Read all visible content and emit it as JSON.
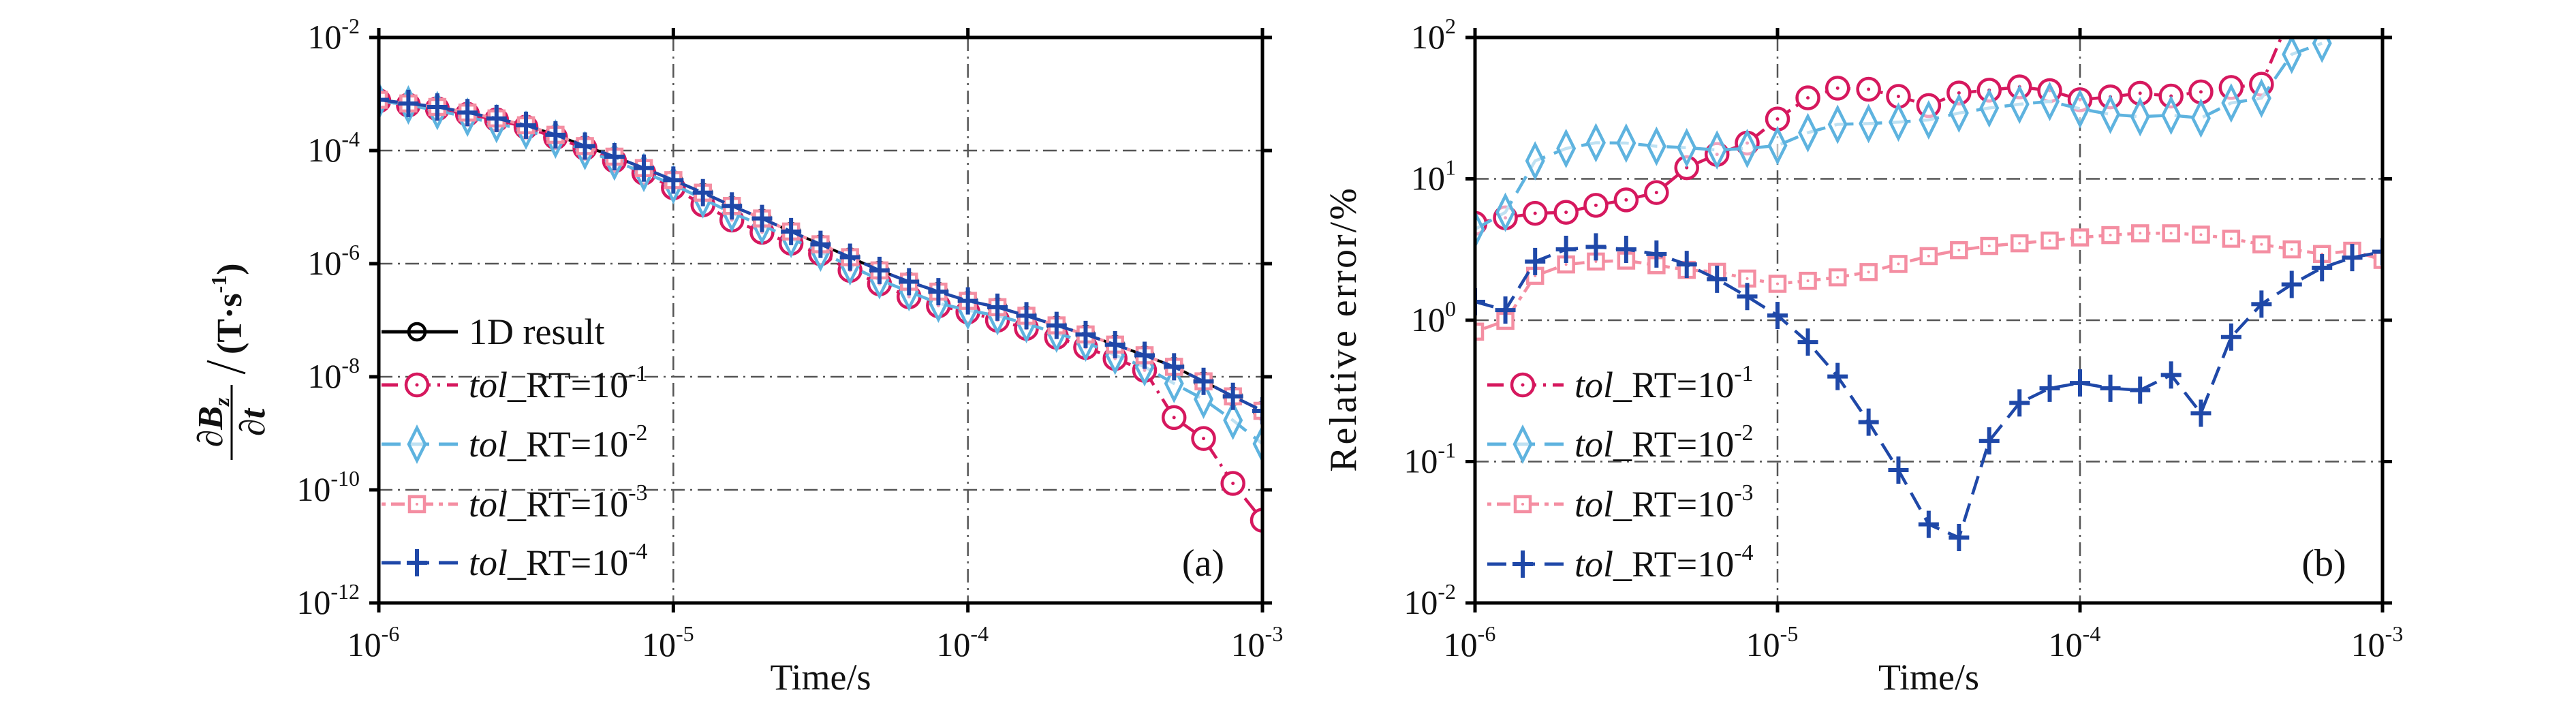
{
  "chart_data": [
    {
      "type": "line",
      "panel_label": "(a)",
      "xlabel": "Time/s",
      "ylabel": {
        "num": "∂B",
        "num_sub": "z",
        "den": "∂t",
        "unit": "(T·s",
        "unit_sup": "-1",
        "unit_end": ")"
      },
      "x_scale": "log",
      "y_scale": "log",
      "xlim": [
        1e-06,
        0.001
      ],
      "ylim": [
        1e-12,
        0.01
      ],
      "x_ticks": [
        {
          "base": "10",
          "exp": "-6"
        },
        {
          "base": "10",
          "exp": "-5"
        },
        {
          "base": "10",
          "exp": "-4"
        },
        {
          "base": "10",
          "exp": "-3"
        }
      ],
      "y_ticks": [
        {
          "base": "10",
          "exp": "-12"
        },
        {
          "base": "10",
          "exp": "-10"
        },
        {
          "base": "10",
          "exp": "-8"
        },
        {
          "base": "10",
          "exp": "-6"
        },
        {
          "base": "10",
          "exp": "-4"
        },
        {
          "base": "10",
          "exp": "-2"
        }
      ],
      "grid": true,
      "legend_position": "lower-left",
      "x": [
        1e-06,
        1.26e-06,
        1.58e-06,
        2e-06,
        2.51e-06,
        3.16e-06,
        3.98e-06,
        5.01e-06,
        6.31e-06,
        7.94e-06,
        1e-05,
        1.26e-05,
        1.58e-05,
        2e-05,
        2.51e-05,
        3.16e-05,
        3.98e-05,
        5.01e-05,
        6.31e-05,
        7.94e-05,
        0.0001,
        0.000126,
        0.000158,
        0.0002,
        0.000251,
        0.000316,
        0.000398,
        0.000501,
        0.000631,
        0.000794,
        0.001
      ],
      "series": [
        {
          "name": "1D result",
          "legend": {
            "italic": "",
            "text": "1D result",
            "sup": ""
          },
          "color": "#000000",
          "marker": "circle",
          "dash": "solid",
          "values": [
            0.00079,
            0.00068,
            0.00059,
            0.00047,
            0.00037,
            0.00028,
            0.00019,
            0.00012,
            7.8e-05,
            4.9e-05,
            3e-05,
            1.8e-05,
            1.05e-05,
            6.3e-06,
            3.7e-06,
            2.2e-06,
            1.3e-06,
            7.6e-07,
            4.8e-07,
            3.2e-07,
            2.2e-07,
            1.7e-07,
            1.2e-07,
            8.1e-08,
            5.6e-08,
            3.7e-08,
            2.4e-08,
            1.5e-08,
            8.3e-09,
            4.5e-09,
            2.5e-09
          ]
        },
        {
          "name": "tol_RT=10-1",
          "legend": {
            "italic": "tol",
            "text": "_RT=10",
            "sup": "-1"
          },
          "color": "#d6185e",
          "marker": "circle-dot",
          "dash": "dashdot",
          "values": [
            0.00076,
            0.00064,
            0.00055,
            0.00044,
            0.00035,
            0.00026,
            0.00017,
            0.00011,
            6.6e-05,
            4e-05,
            2.2e-05,
            1.1e-05,
            5.9e-06,
            3.6e-06,
            2.3e-06,
            1.5e-06,
            7.6e-07,
            4.4e-07,
            2.6e-07,
            1.8e-07,
            1.4e-07,
            1e-07,
            7.2e-08,
            5e-08,
            3.3e-08,
            2.1e-08,
            1.3e-08,
            1.9e-09,
            8.1e-10,
            1.3e-10,
            2.9e-11
          ]
        },
        {
          "name": "tol_RT=10-2",
          "legend": {
            "italic": "tol",
            "text": "_RT=10",
            "sup": "-2"
          },
          "color": "#5eb3df",
          "marker": "diamond",
          "dash": "dashed",
          "values": [
            0.00076,
            0.00064,
            0.00051,
            0.00039,
            0.0003,
            0.00023,
            0.00016,
            0.0001,
            6.5e-05,
            4.1e-05,
            2.5e-05,
            1.4e-05,
            7.9e-06,
            4.8e-06,
            2.8e-06,
            1.6e-06,
            9.1e-07,
            5.2e-07,
            3.2e-07,
            2e-07,
            1.5e-07,
            1.2e-07,
            8.7e-08,
            5.9e-08,
            4.1e-08,
            2.4e-08,
            1.5e-08,
            7.6e-09,
            4e-09,
            1.7e-09,
            6.5e-10
          ]
        },
        {
          "name": "tol_RT=10-3",
          "legend": {
            "italic": "tol",
            "text": "_RT=10",
            "sup": "-3"
          },
          "color": "#f48ea2",
          "marker": "square",
          "dash": "dotdash",
          "values": [
            0.00079,
            0.00068,
            0.00059,
            0.00047,
            0.00037,
            0.00028,
            0.00019,
            0.00012,
            7.8e-05,
            4.9e-05,
            3e-05,
            1.8e-05,
            1.05e-05,
            6.3e-06,
            3.7e-06,
            2.2e-06,
            1.3e-06,
            7.6e-07,
            4.8e-07,
            3.2e-07,
            2.2e-07,
            1.7e-07,
            1.2e-07,
            8.1e-08,
            5.6e-08,
            3.7e-08,
            2.4e-08,
            1.5e-08,
            8.3e-09,
            4.5e-09,
            2.5e-09
          ]
        },
        {
          "name": "tol_RT=10-4",
          "legend": {
            "italic": "tol",
            "text": "_RT=10",
            "sup": "-4"
          },
          "color": "#1f48a8",
          "marker": "plus",
          "dash": "dashed",
          "values": [
            0.00079,
            0.00068,
            0.00059,
            0.00047,
            0.00037,
            0.00028,
            0.00019,
            0.00012,
            7.8e-05,
            4.9e-05,
            3e-05,
            1.8e-05,
            1.05e-05,
            6.3e-06,
            3.7e-06,
            2.2e-06,
            1.3e-06,
            7.6e-07,
            4.8e-07,
            3.2e-07,
            2.2e-07,
            1.7e-07,
            1.2e-07,
            8.1e-08,
            5.6e-08,
            3.7e-08,
            2.4e-08,
            1.5e-08,
            8.3e-09,
            4.5e-09,
            2.5e-09
          ]
        }
      ]
    },
    {
      "type": "line",
      "panel_label": "(b)",
      "xlabel": "Time/s",
      "ylabel_text": "Relative error/%",
      "x_scale": "log",
      "y_scale": "log",
      "xlim": [
        1e-06,
        0.001
      ],
      "ylim": [
        0.01,
        100.0
      ],
      "x_ticks": [
        {
          "base": "10",
          "exp": "-6"
        },
        {
          "base": "10",
          "exp": "-5"
        },
        {
          "base": "10",
          "exp": "-4"
        },
        {
          "base": "10",
          "exp": "-3"
        }
      ],
      "y_ticks": [
        {
          "base": "10",
          "exp": "-2"
        },
        {
          "base": "10",
          "exp": "-1"
        },
        {
          "base": "10",
          "exp": "0"
        },
        {
          "base": "10",
          "exp": "1"
        },
        {
          "base": "10",
          "exp": "2"
        }
      ],
      "grid": true,
      "legend_position": "lower-left",
      "x": [
        1e-06,
        1.26e-06,
        1.58e-06,
        2e-06,
        2.51e-06,
        3.16e-06,
        3.98e-06,
        5.01e-06,
        6.31e-06,
        7.94e-06,
        1e-05,
        1.26e-05,
        1.58e-05,
        2e-05,
        2.51e-05,
        3.16e-05,
        3.98e-05,
        5.01e-05,
        6.31e-05,
        7.94e-05,
        0.0001,
        0.000126,
        0.000158,
        0.0002,
        0.000251,
        0.000316,
        0.000398,
        0.000501,
        0.000631,
        0.000794,
        0.001
      ],
      "series": [
        {
          "name": "tol_RT=10-1",
          "legend": {
            "italic": "tol",
            "text": "_RT=10",
            "sup": "-1"
          },
          "color": "#d6185e",
          "marker": "circle-dot",
          "dash": "dashdot",
          "values": [
            4.85,
            5.3,
            5.7,
            5.8,
            6.5,
            7.1,
            8.0,
            12,
            14.9,
            17.9,
            26.5,
            37.4,
            43.8,
            43,
            38.3,
            33,
            40.5,
            42.4,
            44.7,
            42.1,
            36.3,
            38,
            40.3,
            38.5,
            41.2,
            44.3,
            46.7,
            150,
            null,
            null,
            null
          ]
        },
        {
          "name": "tol_RT=10-2",
          "legend": {
            "italic": "tol",
            "text": "_RT=10",
            "sup": "-2"
          },
          "color": "#5eb3df",
          "marker": "diamond",
          "dash": "dashed",
          "values": [
            4.4,
            5.8,
            13.4,
            16.4,
            18,
            17.9,
            17,
            16.6,
            16,
            16.4,
            17.2,
            21.2,
            24.3,
            24.6,
            25.2,
            26.1,
            29.2,
            31.7,
            33.7,
            35.3,
            31.3,
            28.6,
            27.5,
            28.2,
            26.9,
            34.4,
            37.2,
            76,
            91,
            null,
            null
          ]
        },
        {
          "name": "tol_RT=10-3",
          "legend": {
            "italic": "tol",
            "text": "_RT=10",
            "sup": "-3"
          },
          "color": "#f48ea2",
          "marker": "square",
          "dash": "dotdash",
          "values": [
            0.83,
            0.99,
            2.06,
            2.48,
            2.6,
            2.64,
            2.45,
            2.27,
            2.2,
            1.97,
            1.81,
            1.9,
            2.01,
            2.19,
            2.5,
            2.84,
            3.13,
            3.35,
            3.5,
            3.66,
            3.85,
            4.0,
            4.12,
            4.12,
            4.03,
            3.77,
            3.44,
            3.17,
            2.94,
            3.1,
            2.67
          ]
        },
        {
          "name": "tol_RT=10-4",
          "legend": {
            "italic": "tol",
            "text": "_RT=10",
            "sup": "-4"
          },
          "color": "#1f48a8",
          "marker": "plus",
          "dash": "dashed",
          "values": [
            1.35,
            1.18,
            2.6,
            3.17,
            3.3,
            3.17,
            2.94,
            2.48,
            1.95,
            1.47,
            1.08,
            0.7,
            0.4,
            0.19,
            0.087,
            0.036,
            0.029,
            0.14,
            0.26,
            0.33,
            0.36,
            0.33,
            0.32,
            0.41,
            0.22,
            0.76,
            1.3,
            1.79,
            2.35,
            2.77,
            3.05
          ]
        }
      ]
    }
  ]
}
